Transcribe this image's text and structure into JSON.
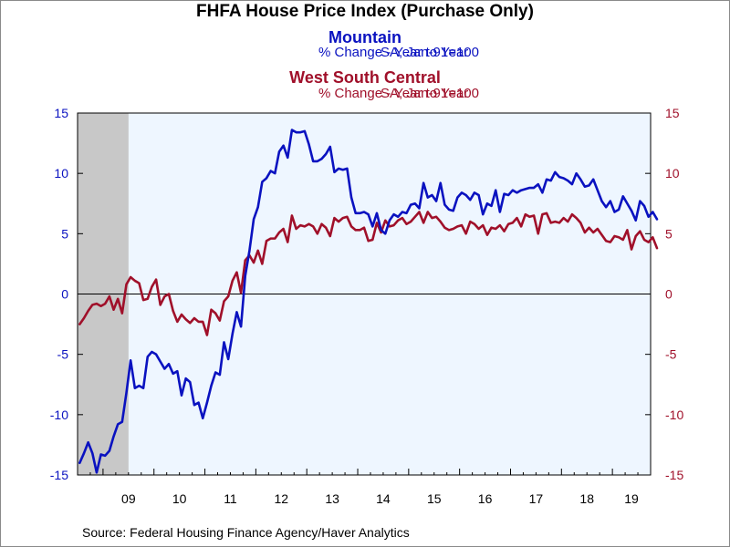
{
  "title": "FHFA House Price Index (Purchase Only)",
  "series1": {
    "name": "Mountain",
    "units": "% Change - Year to Year",
    "base": "SA, Jan-91=100",
    "color": "#0a12c0"
  },
  "series2": {
    "name": "West South Central",
    "units": "% Change - Year to Year",
    "base": "SA, Jan-91=100",
    "color": "#a0102a"
  },
  "source": "Source:  Federal Housing Finance Agency/Haver Analytics",
  "chart_data": {
    "type": "line",
    "frequency": "monthly",
    "x_start": "2008-07",
    "x_end": "2019-09",
    "recession": {
      "start": "2008-07",
      "end": "2009-06",
      "color": "#c8c8c8"
    },
    "plot_background": "#eef6ff",
    "zero_line": true,
    "grid": false,
    "y_ticks": [
      -15,
      -10,
      -5,
      0,
      5,
      10,
      15
    ],
    "ylim_left": [
      -15,
      15
    ],
    "ylim_right": [
      -15,
      15
    ],
    "x_ticks": [
      "09",
      "10",
      "11",
      "12",
      "13",
      "14",
      "15",
      "16",
      "17",
      "18",
      "19"
    ],
    "series": [
      {
        "name": "Mountain",
        "axis": "left",
        "color": "#0a12c0",
        "values": [
          -14.0,
          -13.2,
          -12.3,
          -13.2,
          -14.8,
          -13.3,
          -13.4,
          -13.0,
          -11.8,
          -10.8,
          -10.6,
          -8.2,
          -5.5,
          -7.8,
          -7.6,
          -7.8,
          -5.2,
          -4.8,
          -5.0,
          -5.6,
          -6.2,
          -5.8,
          -6.6,
          -6.4,
          -8.4,
          -7.0,
          -7.3,
          -9.2,
          -9.0,
          -10.3,
          -9.0,
          -7.6,
          -6.5,
          -6.7,
          -4.0,
          -5.4,
          -3.3,
          -1.5,
          -2.7,
          1.5,
          3.6,
          6.2,
          7.2,
          9.3,
          9.6,
          10.2,
          10.0,
          11.8,
          12.3,
          11.3,
          13.6,
          13.4,
          13.4,
          13.5,
          12.4,
          11.0,
          11.0,
          11.2,
          11.6,
          12.2,
          10.1,
          10.4,
          10.3,
          10.4,
          8.0,
          6.7,
          6.7,
          6.8,
          6.6,
          5.6,
          6.7,
          5.3,
          5.0,
          6.1,
          6.6,
          6.4,
          6.8,
          6.7,
          7.4,
          7.5,
          7.1,
          9.2,
          8.0,
          8.2,
          7.7,
          9.2,
          7.4,
          7.0,
          6.9,
          8.0,
          8.4,
          8.2,
          7.8,
          8.4,
          8.2,
          6.6,
          7.5,
          7.3,
          8.6,
          6.8,
          8.3,
          8.2,
          8.6,
          8.4,
          8.6,
          8.7,
          8.8,
          8.8,
          9.1,
          8.4,
          9.5,
          9.4,
          10.1,
          9.7,
          9.6,
          9.4,
          9.1,
          10.0,
          9.5,
          8.9,
          9.0,
          9.5,
          8.6,
          7.7,
          7.2,
          7.7,
          6.8,
          7.0,
          8.1,
          7.5,
          6.9,
          6.1,
          7.7,
          7.3,
          6.4,
          6.8,
          6.2
        ]
      },
      {
        "name": "West South Central",
        "axis": "right",
        "color": "#a0102a",
        "values": [
          -2.5,
          -2.0,
          -1.4,
          -0.9,
          -0.8,
          -1.0,
          -0.8,
          -0.2,
          -1.3,
          -0.4,
          -1.6,
          0.8,
          1.4,
          1.1,
          0.9,
          -0.5,
          -0.4,
          0.6,
          1.2,
          -0.9,
          -0.2,
          0.0,
          -1.4,
          -2.3,
          -1.7,
          -2.1,
          -2.4,
          -2.0,
          -2.3,
          -2.3,
          -3.4,
          -1.3,
          -1.6,
          -2.2,
          -0.6,
          -0.2,
          1.1,
          1.8,
          0.1,
          2.8,
          3.2,
          2.6,
          3.6,
          2.5,
          4.4,
          4.6,
          4.6,
          5.1,
          5.4,
          4.3,
          6.5,
          5.4,
          5.7,
          5.6,
          5.8,
          5.6,
          5.0,
          5.8,
          5.5,
          4.8,
          6.3,
          6.0,
          6.3,
          6.4,
          5.6,
          5.3,
          5.3,
          5.5,
          4.4,
          4.5,
          5.9,
          5.1,
          6.1,
          5.6,
          5.7,
          6.1,
          6.3,
          5.8,
          6.0,
          6.4,
          6.8,
          5.9,
          6.8,
          6.3,
          6.4,
          6.0,
          5.5,
          5.3,
          5.4,
          5.6,
          5.7,
          5.0,
          6.0,
          5.8,
          5.4,
          5.7,
          4.9,
          5.5,
          5.4,
          5.7,
          5.2,
          5.8,
          5.9,
          6.3,
          5.6,
          6.6,
          6.4,
          6.5,
          5.0,
          6.6,
          6.7,
          5.9,
          6.0,
          5.9,
          6.3,
          6.0,
          6.6,
          6.3,
          5.9,
          5.1,
          5.5,
          5.1,
          5.4,
          4.9,
          4.4,
          4.3,
          4.8,
          4.7,
          4.5,
          5.3,
          3.7,
          4.8,
          5.2,
          4.5,
          4.3,
          4.7,
          3.8
        ]
      }
    ]
  }
}
